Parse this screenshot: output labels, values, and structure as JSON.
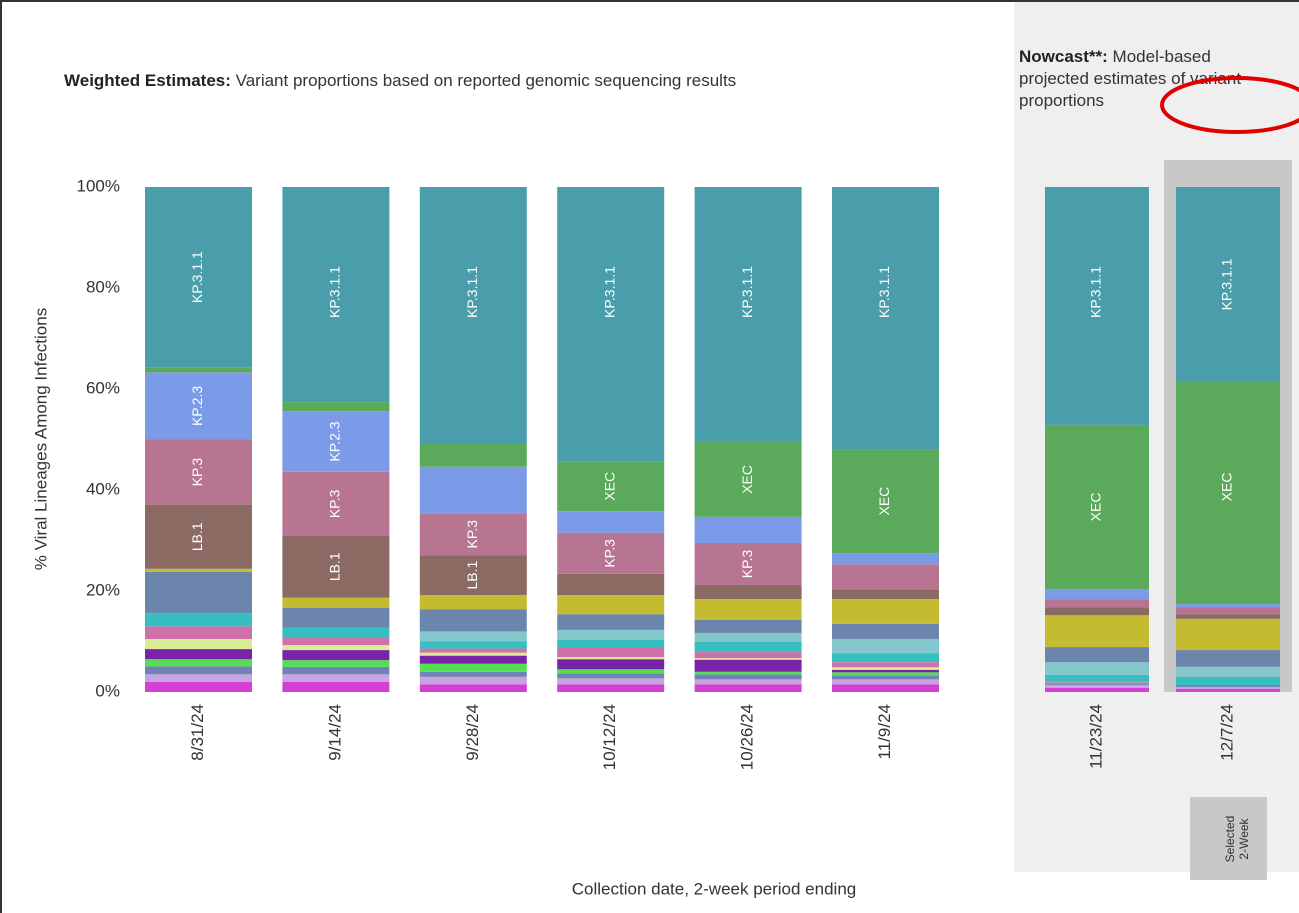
{
  "chart_data": [
    {
      "type": "bar",
      "stacked": true,
      "title_label": "Weighted Estimates:",
      "title": "Variant proportions based on reported genomic sequencing results",
      "ylabel": "% Viral Lineages Among Infections",
      "xlabel": "Collection date, 2-week period ending",
      "categories": [
        "8/31/24",
        "9/14/24",
        "9/28/24",
        "10/12/24",
        "10/26/24",
        "11/9/24"
      ],
      "ylim": [
        0,
        100
      ],
      "yticks": [
        {
          "value": 0,
          "label": "0%"
        },
        {
          "value": 20,
          "label": "20%"
        },
        {
          "value": 40,
          "label": "40%"
        },
        {
          "value": 60,
          "label": "60%"
        },
        {
          "value": 80,
          "label": "80%"
        },
        {
          "value": 100,
          "label": "100%"
        }
      ],
      "series": [
        {
          "color": "#d43fd4",
          "values": [
            2,
            2,
            1.5,
            1.5,
            1.5,
            1.5
          ]
        },
        {
          "color": "#c7a3e0",
          "values": [
            1.5,
            1.5,
            1.5,
            1.2,
            1,
            1
          ]
        },
        {
          "color": "#6f83b5",
          "values": [
            1.6,
            1.5,
            1,
            1,
            1,
            0.8
          ]
        },
        {
          "color": "#52e052",
          "values": [
            1.4,
            1.3,
            1.6,
            0.8,
            0.5,
            0.6
          ]
        },
        {
          "color": "#7a22a8",
          "values": [
            2,
            2,
            1.6,
            2,
            2.4,
            0.5
          ]
        },
        {
          "color": "#d9ec93",
          "values": [
            2,
            1,
            0.6,
            0.4,
            0.3,
            0.5
          ]
        },
        {
          "color": "#d070a8",
          "values": [
            2.5,
            1.4,
            0.8,
            2,
            1.2,
            1
          ]
        },
        {
          "color": "#36bfc0",
          "values": [
            2.6,
            2,
            1.4,
            1.4,
            2,
            1.8
          ]
        },
        {
          "color": "#83c7cc",
          "values": [
            0,
            0,
            2,
            2,
            1.8,
            2.8
          ]
        },
        {
          "color": "#6c85ad",
          "values": [
            8.2,
            4,
            4.4,
            3.1,
            2.6,
            3
          ]
        },
        {
          "color": "#c3bb30",
          "values": [
            0.6,
            2,
            2.8,
            3.8,
            4.1,
            4.9
          ]
        },
        {
          "name": "LB.1",
          "color": "#8a6a62",
          "values": [
            12.7,
            12.2,
            7.9,
            4.2,
            2.8,
            1.8
          ],
          "show_label": [
            true,
            true,
            true,
            false,
            false,
            false
          ]
        },
        {
          "name": "KP.3",
          "color": "#b77592",
          "values": [
            12.9,
            12.7,
            8.3,
            8.1,
            8.3,
            5.1
          ],
          "show_label": [
            true,
            true,
            true,
            true,
            true,
            false
          ]
        },
        {
          "name": "KP.2.3",
          "color": "#7b9be8",
          "values": [
            13.3,
            12,
            9.2,
            4.3,
            5.2,
            2.2
          ],
          "show_label": [
            true,
            true,
            false,
            false,
            false,
            false
          ]
        },
        {
          "name": "XEC",
          "color": "#5ba95b",
          "values": [
            1,
            1.8,
            4.7,
            9.9,
            14.8,
            20.6
          ],
          "show_label": [
            false,
            false,
            false,
            true,
            true,
            true
          ]
        },
        {
          "name": "KP.3.1.1",
          "color": "#4a9dab",
          "values": [
            35.7,
            42.6,
            50.7,
            54.3,
            50.5,
            51.9
          ],
          "show_label": [
            true,
            true,
            true,
            true,
            true,
            true
          ]
        }
      ]
    },
    {
      "type": "bar",
      "stacked": true,
      "title_label": "Nowcast**:",
      "title": "Model-based projected estimates of variant proportions",
      "categories": [
        "11/23/24",
        "12/7/24"
      ],
      "ylim": [
        0,
        100
      ],
      "selected_index": 1,
      "selected_label": "Selected 2-Week",
      "series": [
        {
          "color": "#d43fd4",
          "values": [
            0.8,
            0.6
          ]
        },
        {
          "color": "#c7a3e0",
          "values": [
            0.6,
            0.4
          ]
        },
        {
          "color": "#6f83b5",
          "values": [
            0.3,
            0.2
          ]
        },
        {
          "color": "#52e052",
          "values": [
            0.1,
            0.1
          ]
        },
        {
          "color": "#7a22a8",
          "values": [
            0.1,
            0.1
          ]
        },
        {
          "color": "#d9ec93",
          "values": [
            0.1,
            0
          ]
        },
        {
          "color": "#d070a8",
          "values": [
            0,
            0
          ]
        },
        {
          "color": "#36bfc0",
          "values": [
            1.4,
            1.6
          ]
        },
        {
          "color": "#83c7cc",
          "values": [
            2.5,
            2
          ]
        },
        {
          "color": "#6c85ad",
          "values": [
            3,
            3.3
          ]
        },
        {
          "color": "#c3bb30",
          "values": [
            6.3,
            6.2
          ]
        },
        {
          "name": "LB.1",
          "color": "#8a6a62",
          "values": [
            1.6,
            0.9
          ]
        },
        {
          "name": "KP.3",
          "color": "#b77592",
          "values": [
            1.6,
            1.4
          ]
        },
        {
          "name": "KP.2.3",
          "color": "#7b9be8",
          "values": [
            2,
            0.6
          ]
        },
        {
          "name": "XEC",
          "color": "#5ba95b",
          "values": [
            32.5,
            44
          ],
          "show_label": [
            true,
            true
          ]
        },
        {
          "name": "KP.3.1.1",
          "color": "#4a9dab",
          "values": [
            47.1,
            38.6
          ],
          "show_label": [
            true,
            true
          ]
        }
      ]
    }
  ]
}
